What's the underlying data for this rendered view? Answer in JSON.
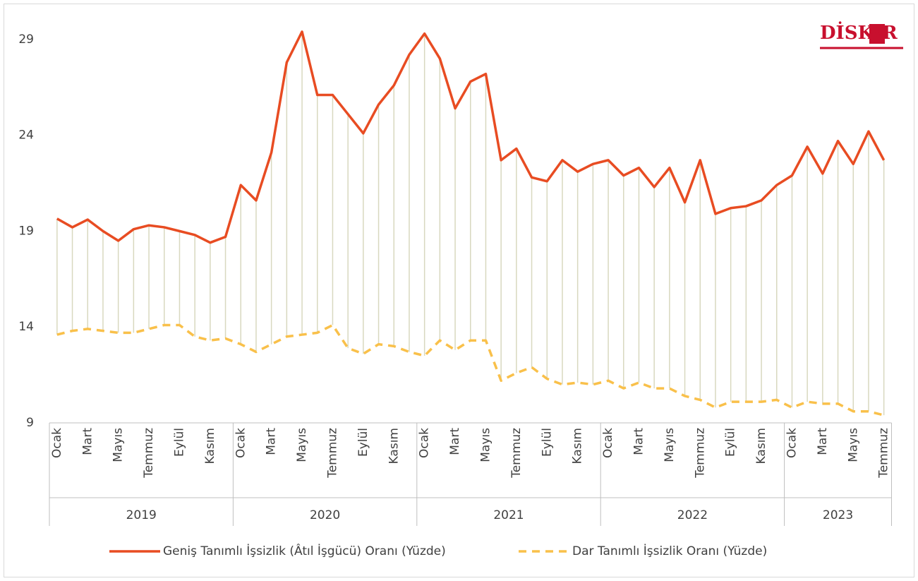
{
  "chart_data": {
    "type": "line",
    "logo": [
      "DİSK",
      "AR"
    ],
    "categories": [
      "Ocak",
      null,
      "Mart",
      null,
      "Mayıs",
      null,
      "Temmuz",
      null,
      "Eylül",
      null,
      "Kasım",
      null,
      "Ocak",
      null,
      "Mart",
      null,
      "Mayıs",
      null,
      "Temmuz",
      null,
      "Eylül",
      null,
      "Kasım",
      null,
      "Ocak",
      null,
      "Mart",
      null,
      "Mayıs",
      null,
      "Temmuz",
      null,
      "Eylül",
      null,
      "Kasım",
      null,
      "Ocak",
      null,
      "Mart",
      null,
      "Mayıs",
      null,
      "Temmuz",
      null,
      "Eylül",
      null,
      "Kasım",
      null,
      "Ocak",
      null,
      "Mart",
      null,
      "Mayıs",
      null,
      "Temmuz"
    ],
    "groups": [
      {
        "label": "2019",
        "count": 12
      },
      {
        "label": "2020",
        "count": 12
      },
      {
        "label": "2021",
        "count": 12
      },
      {
        "label": "2022",
        "count": 12
      },
      {
        "label": "2023",
        "count": 7
      }
    ],
    "series": [
      {
        "name": "Geniş Tanımlı İşsizlik (Âtıl İşgücü) Oranı (Yüzde)",
        "color": "#e84c22",
        "dashed": false,
        "values": [
          19.65,
          19.2,
          19.6,
          19.0,
          18.5,
          19.1,
          19.3,
          19.2,
          19.0,
          18.8,
          18.4,
          18.7,
          21.4,
          20.6,
          23.1,
          27.8,
          29.4,
          26.1,
          26.1,
          25.1,
          24.1,
          25.6,
          26.6,
          28.2,
          29.3,
          28.0,
          25.4,
          26.8,
          27.2,
          22.7,
          23.3,
          21.8,
          21.6,
          22.7,
          22.1,
          22.5,
          22.7,
          21.9,
          22.3,
          21.3,
          22.3,
          20.5,
          22.7,
          19.9,
          20.2,
          20.3,
          20.6,
          21.4,
          21.9,
          23.4,
          22.0,
          23.7,
          22.5,
          24.2,
          22.7
        ]
      },
      {
        "name": "Dar Tanımlı İşsizlik Oranı (Yüzde)",
        "color": "#f9c04a",
        "dashed": true,
        "values": [
          13.6,
          13.8,
          13.9,
          13.8,
          13.7,
          13.7,
          13.9,
          14.1,
          14.1,
          13.5,
          13.3,
          13.4,
          13.1,
          12.7,
          13.1,
          13.5,
          13.6,
          13.7,
          14.1,
          12.9,
          12.6,
          13.1,
          13.0,
          12.7,
          12.5,
          13.3,
          12.8,
          13.3,
          13.3,
          11.2,
          11.6,
          11.9,
          11.3,
          11.0,
          11.1,
          11.0,
          11.2,
          10.8,
          11.1,
          10.8,
          10.8,
          10.4,
          10.2,
          9.8,
          10.1,
          10.1,
          10.1,
          10.2,
          9.8,
          10.1,
          10.0,
          10.0,
          9.6,
          9.6,
          9.4
        ]
      }
    ],
    "droplines_color": "#d8d8bf",
    "ylim": [
      9,
      30
    ],
    "yticks": [
      9,
      14,
      19,
      24,
      29
    ],
    "grid": false,
    "legend": "bottom"
  }
}
